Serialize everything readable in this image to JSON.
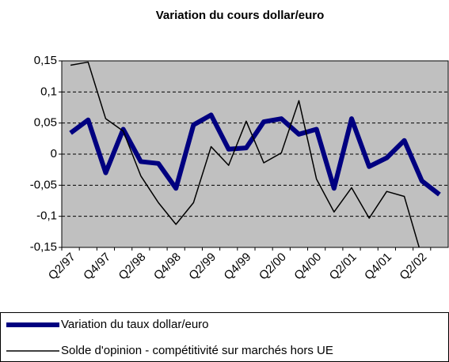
{
  "chart_data": {
    "type": "line",
    "title": "Variation du cours dollar/euro",
    "categories": [
      "Q2/97",
      null,
      "Q4/97",
      null,
      "Q2/98",
      null,
      "Q4/98",
      null,
      "Q2/99",
      null,
      "Q4/99",
      null,
      "Q2/00",
      null,
      "Q4/00",
      null,
      "Q2/01",
      null,
      "Q4/01",
      null,
      "Q2/02",
      null
    ],
    "series": [
      {
        "name": "Variation du taux dollar/euro",
        "color": "#000080",
        "width": 6,
        "values": [
          0.034,
          0.055,
          -0.03,
          0.04,
          -0.012,
          -0.015,
          -0.055,
          0.047,
          0.063,
          0.008,
          0.01,
          0.052,
          0.057,
          0.032,
          0.04,
          -0.055,
          0.057,
          -0.02,
          -0.006,
          0.022,
          -0.043,
          -0.065
        ]
      },
      {
        "name": "Solde d'opinion - compétitivité sur marchés hors UE",
        "color": "#000000",
        "width": 1.5,
        "values": [
          0.143,
          0.148,
          0.057,
          0.037,
          -0.035,
          -0.078,
          -0.113,
          -0.078,
          0.012,
          -0.018,
          0.053,
          -0.014,
          0.002,
          0.086,
          -0.04,
          -0.093,
          -0.054,
          -0.103,
          -0.06,
          -0.068,
          -0.165,
          null
        ]
      }
    ],
    "ylim": [
      -0.15,
      0.15
    ],
    "yticks": [
      {
        "value": -0.15,
        "label": "-0,15"
      },
      {
        "value": -0.1,
        "label": "-0,1"
      },
      {
        "value": -0.05,
        "label": "-0,05"
      },
      0,
      {
        "value": 0.05,
        "label": "0,05"
      },
      {
        "value": 0.1,
        "label": "0,1"
      },
      {
        "value": 0.15,
        "label": "0,15"
      }
    ],
    "grid": true,
    "legend": "bottom"
  }
}
